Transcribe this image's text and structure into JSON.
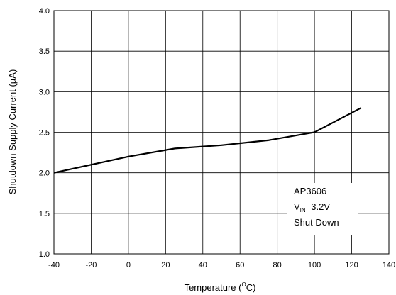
{
  "chart_data": {
    "type": "line",
    "xlabel_prefix": "Temperature (",
    "xlabel_unit_sup": "O",
    "xlabel_unit_rest": "C)",
    "ylabel": "Shutdown Supply Current (µA)",
    "xlim": [
      -40,
      140
    ],
    "ylim": [
      1.0,
      4.0
    ],
    "x_ticks": [
      -40,
      -20,
      0,
      20,
      40,
      60,
      80,
      100,
      120,
      140
    ],
    "y_ticks": [
      1.0,
      1.5,
      2.0,
      2.5,
      3.0,
      3.5,
      4.0
    ],
    "x_tick_labels": [
      "-40",
      "-20",
      "0",
      "20",
      "40",
      "60",
      "80",
      "100",
      "120",
      "140"
    ],
    "y_tick_labels": [
      "1.0",
      "1.5",
      "2.0",
      "2.5",
      "3.0",
      "3.5",
      "4.0"
    ],
    "grid": true,
    "series": [
      {
        "x": [
          -40,
          0,
          25,
          50,
          75,
          100,
          125
        ],
        "y": [
          2.0,
          2.2,
          2.3,
          2.34,
          2.4,
          2.5,
          2.8
        ]
      }
    ],
    "annotation": {
      "line1": "AP3606",
      "line2_main": "V",
      "line2_sub": "IN",
      "line2_rest": "=3.2V",
      "line3": "Shut Down"
    },
    "colors": {
      "line": "#000000",
      "grid": "#000000",
      "background": "#ffffff"
    }
  }
}
